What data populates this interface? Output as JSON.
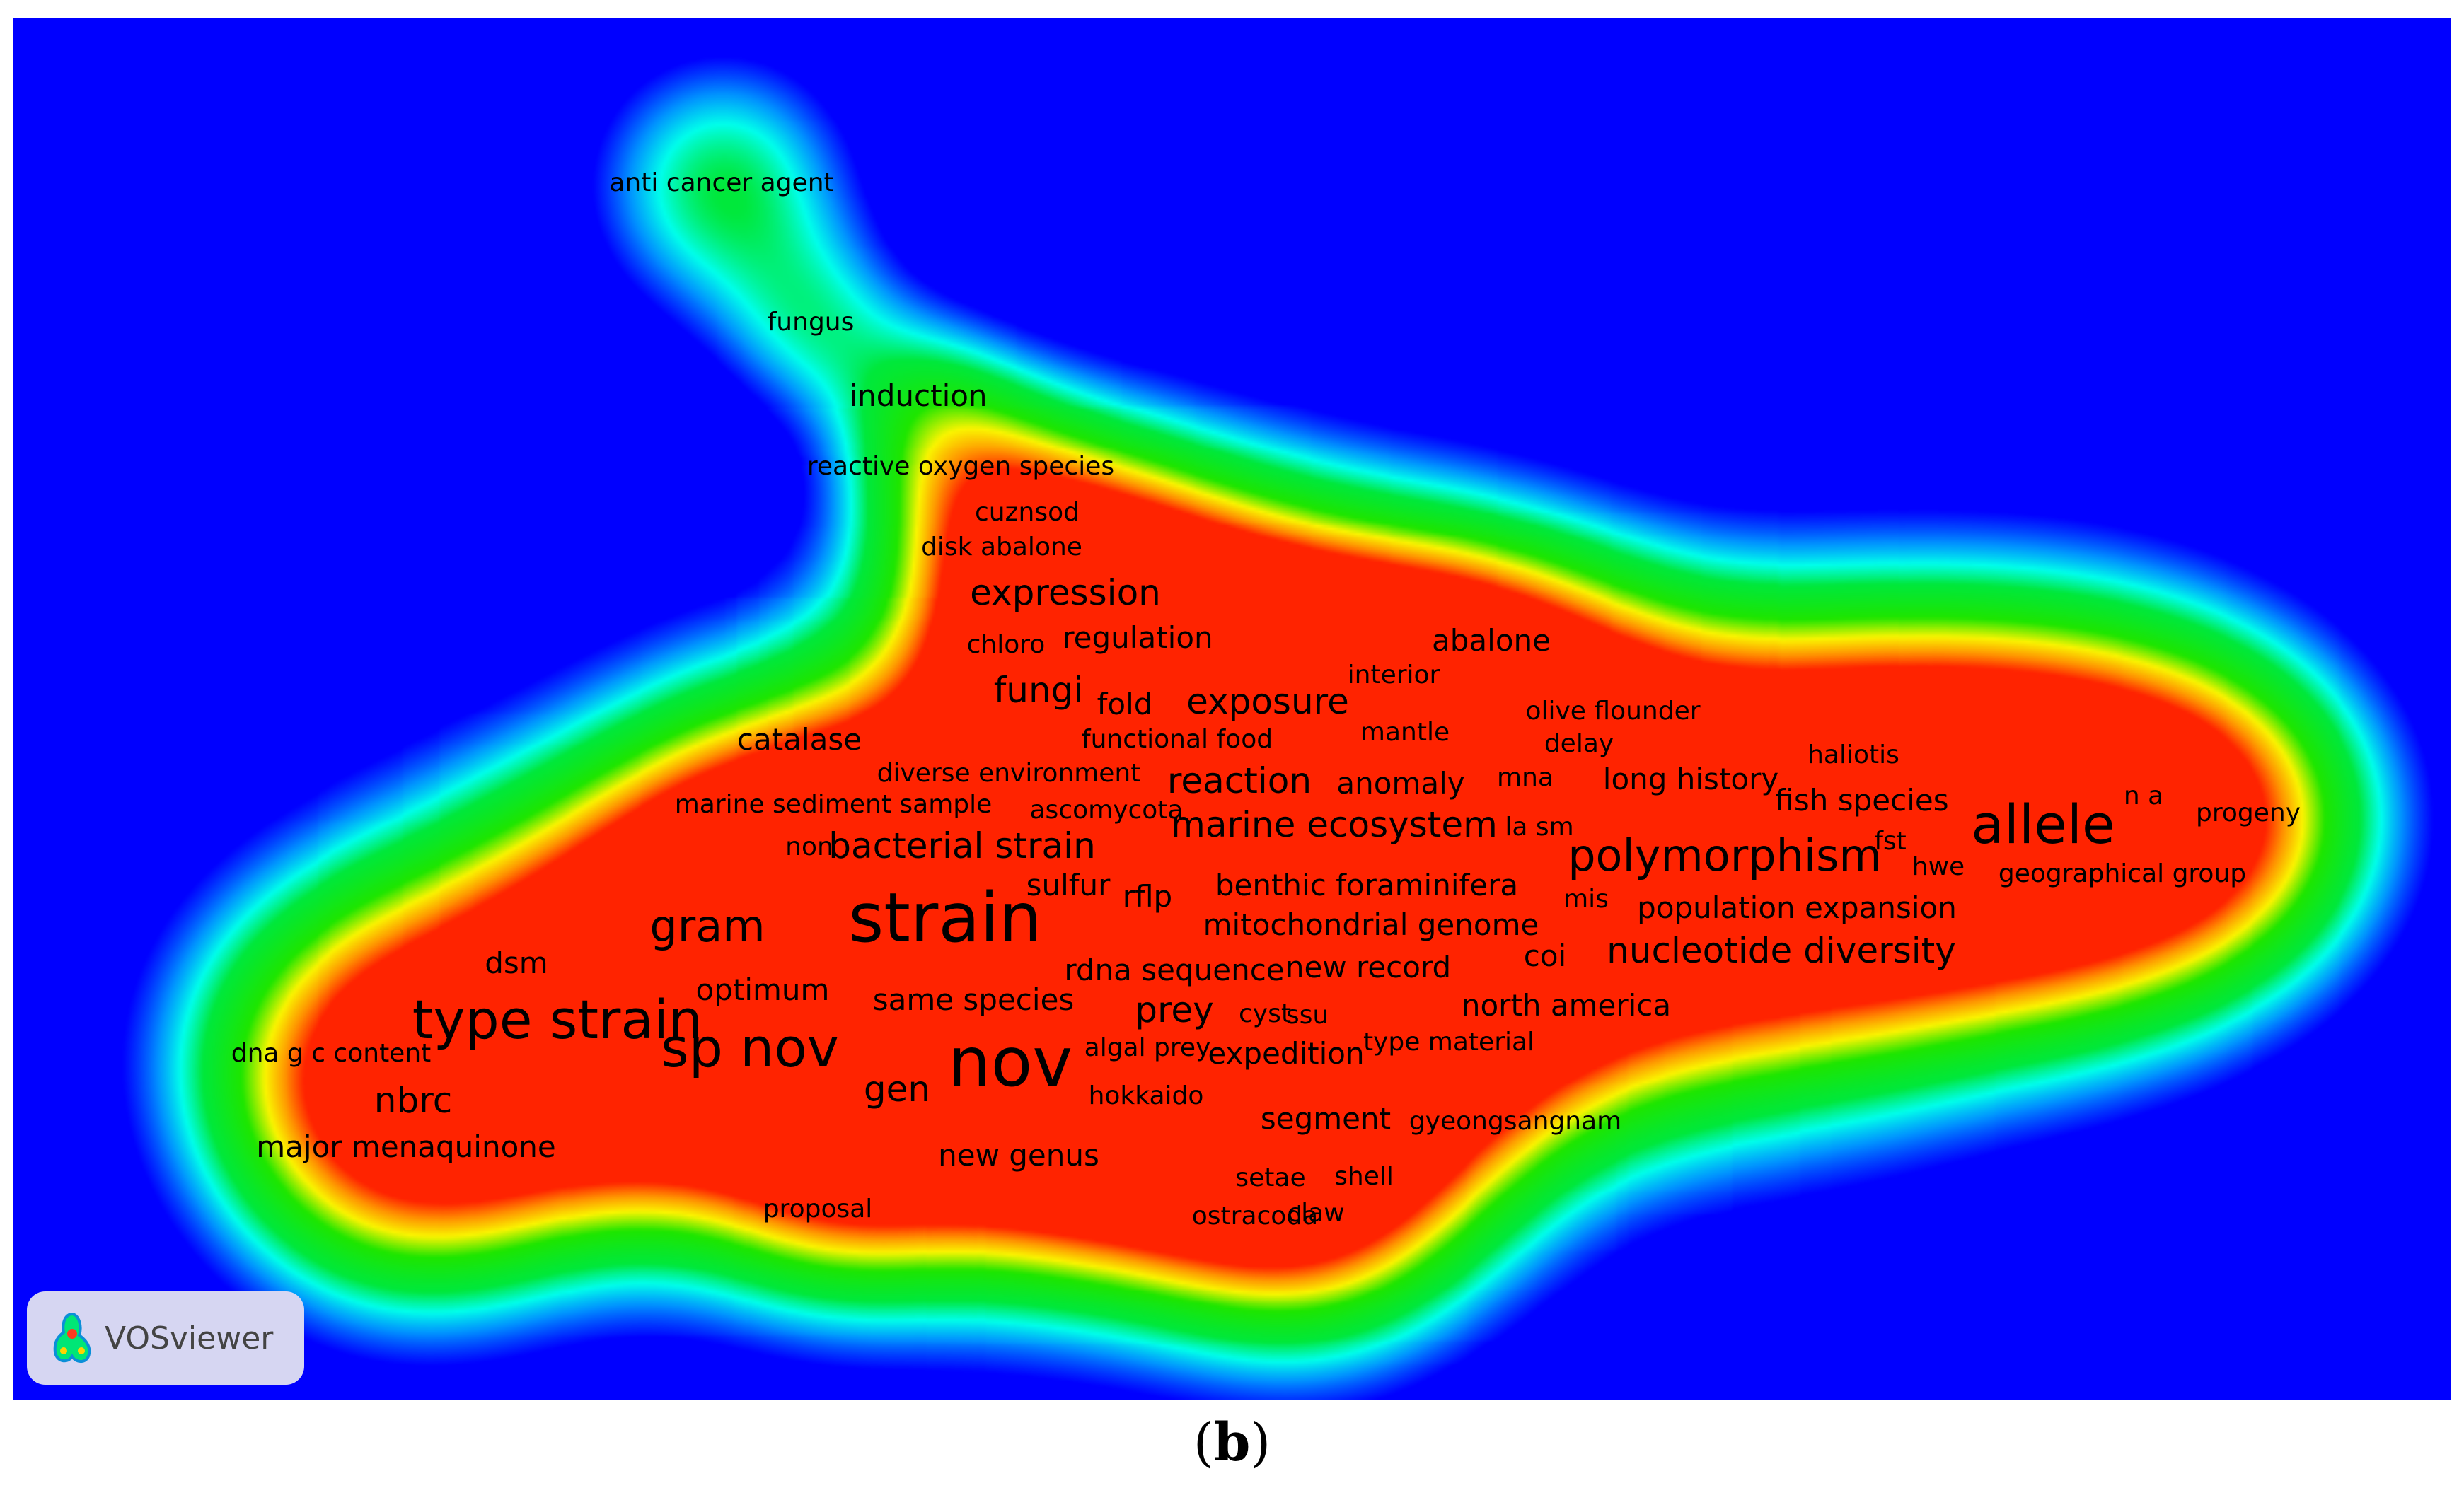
{
  "colors": {
    "background": "#0000ff",
    "caption_text": "#000000",
    "badge_background": "#d6d6f2",
    "badge_text": "#444444"
  },
  "brand": {
    "name": "VOSviewer",
    "logo": "vosviewer-logo-icon"
  },
  "caption": {
    "open": "(",
    "label": "b",
    "close": ")"
  },
  "map": {
    "terms": [
      {
        "label": "anti cancer agent",
        "weight": 1
      },
      {
        "label": "fungus",
        "weight": 1
      },
      {
        "label": "induction",
        "weight": 2
      },
      {
        "label": "reactive oxygen species",
        "weight": 1
      },
      {
        "label": "cuznsod",
        "weight": 1
      },
      {
        "label": "disk abalone",
        "weight": 1
      },
      {
        "label": "expression",
        "weight": 3
      },
      {
        "label": "chloro",
        "weight": 1
      },
      {
        "label": "regulation",
        "weight": 2
      },
      {
        "label": "abalone",
        "weight": 2
      },
      {
        "label": "interior",
        "weight": 1
      },
      {
        "label": "fungi",
        "weight": 3
      },
      {
        "label": "fold",
        "weight": 2
      },
      {
        "label": "exposure",
        "weight": 3
      },
      {
        "label": "olive flounder",
        "weight": 1
      },
      {
        "label": "catalase",
        "weight": 2
      },
      {
        "label": "functional food",
        "weight": 1
      },
      {
        "label": "mantle",
        "weight": 1
      },
      {
        "label": "delay",
        "weight": 1
      },
      {
        "label": "haliotis",
        "weight": 1
      },
      {
        "label": "diverse environment",
        "weight": 1
      },
      {
        "label": "reaction",
        "weight": 3
      },
      {
        "label": "anomaly",
        "weight": 2
      },
      {
        "label": "mna",
        "weight": 1
      },
      {
        "label": "long history",
        "weight": 2
      },
      {
        "label": "fish species",
        "weight": 2
      },
      {
        "label": "marine sediment sample",
        "weight": 1
      },
      {
        "label": "ascomycota",
        "weight": 1
      },
      {
        "label": "marine ecosystem",
        "weight": 3
      },
      {
        "label": "la sm",
        "weight": 1
      },
      {
        "label": "n a",
        "weight": 1
      },
      {
        "label": "allele",
        "weight": 5
      },
      {
        "label": "progeny",
        "weight": 1
      },
      {
        "label": "non",
        "weight": 1
      },
      {
        "label": "bacterial strain",
        "weight": 3
      },
      {
        "label": "polymorphism",
        "weight": 4
      },
      {
        "label": "fst",
        "weight": 1
      },
      {
        "label": "hwe",
        "weight": 1
      },
      {
        "label": "geographical group",
        "weight": 1
      },
      {
        "label": "strain",
        "weight": 6
      },
      {
        "label": "sulfur",
        "weight": 2
      },
      {
        "label": "rflp",
        "weight": 2
      },
      {
        "label": "benthic foraminifera",
        "weight": 2
      },
      {
        "label": "mis",
        "weight": 1
      },
      {
        "label": "population expansion",
        "weight": 2
      },
      {
        "label": "gram",
        "weight": 4
      },
      {
        "label": "mitochondrial genome",
        "weight": 2
      },
      {
        "label": "dsm",
        "weight": 2
      },
      {
        "label": "nucleotide diversity",
        "weight": 3
      },
      {
        "label": "coi",
        "weight": 2
      },
      {
        "label": "type strain",
        "weight": 5
      },
      {
        "label": "optimum",
        "weight": 2
      },
      {
        "label": "rdna sequence",
        "weight": 2
      },
      {
        "label": "new record",
        "weight": 2
      },
      {
        "label": "same species",
        "weight": 2
      },
      {
        "label": "prey",
        "weight": 3
      },
      {
        "label": "cyst",
        "weight": 1
      },
      {
        "label": "ssu",
        "weight": 1
      },
      {
        "label": "north america",
        "weight": 2
      },
      {
        "label": "sp nov",
        "weight": 5
      },
      {
        "label": "nov",
        "weight": 6
      },
      {
        "label": "dna g c content",
        "weight": 1
      },
      {
        "label": "algal prey",
        "weight": 1
      },
      {
        "label": "expedition",
        "weight": 2
      },
      {
        "label": "type material",
        "weight": 1
      },
      {
        "label": "nbrc",
        "weight": 3
      },
      {
        "label": "gen",
        "weight": 3
      },
      {
        "label": "hokkaido",
        "weight": 1
      },
      {
        "label": "segment",
        "weight": 2
      },
      {
        "label": "gyeongsangnam",
        "weight": 1
      },
      {
        "label": "major menaquinone",
        "weight": 2
      },
      {
        "label": "new genus",
        "weight": 2
      },
      {
        "label": "setae",
        "weight": 1
      },
      {
        "label": "shell",
        "weight": 1
      },
      {
        "label": "proposal",
        "weight": 1
      },
      {
        "label": "ostracoda",
        "weight": 1
      },
      {
        "label": "claw",
        "weight": 1
      }
    ]
  }
}
